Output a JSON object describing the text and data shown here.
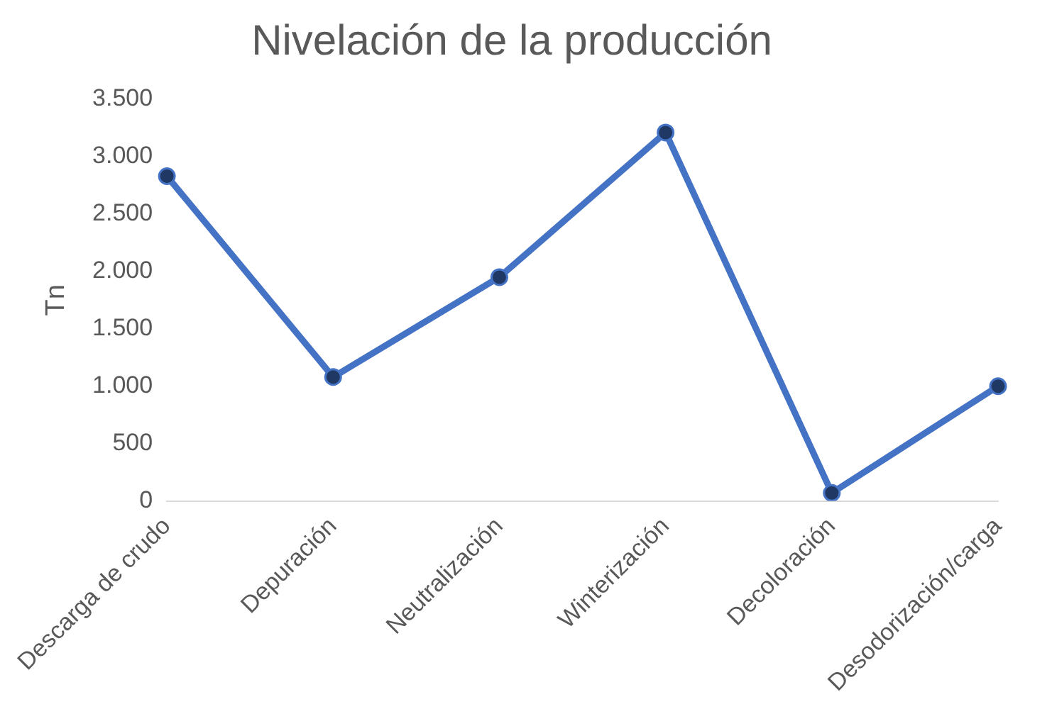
{
  "chart_data": {
    "type": "line",
    "title": "Nivelación de la producción",
    "ylabel": "Tn",
    "categories": [
      "Descarga de crudo",
      "Depuración",
      "Neutralización",
      "Winterización",
      "Decoloración",
      "Desodorización/carga"
    ],
    "series": [
      {
        "color": "#4472c4",
        "values": [
          2830,
          1080,
          1950,
          3210,
          70,
          1000
        ]
      }
    ],
    "ylim": [
      0,
      3500
    ],
    "yticks": [
      {
        "value": 0,
        "label": "0"
      },
      {
        "value": 500,
        "label": "500"
      },
      {
        "value": 1000,
        "label": "1.000"
      },
      {
        "value": 1500,
        "label": "1.500"
      },
      {
        "value": 2000,
        "label": "2.000"
      },
      {
        "value": 2500,
        "label": "2.500"
      },
      {
        "value": 3000,
        "label": "3.000"
      },
      {
        "value": 3500,
        "label": "3.500"
      }
    ],
    "grid": false,
    "legend": false,
    "marker": "circle",
    "line_style": "solid"
  }
}
